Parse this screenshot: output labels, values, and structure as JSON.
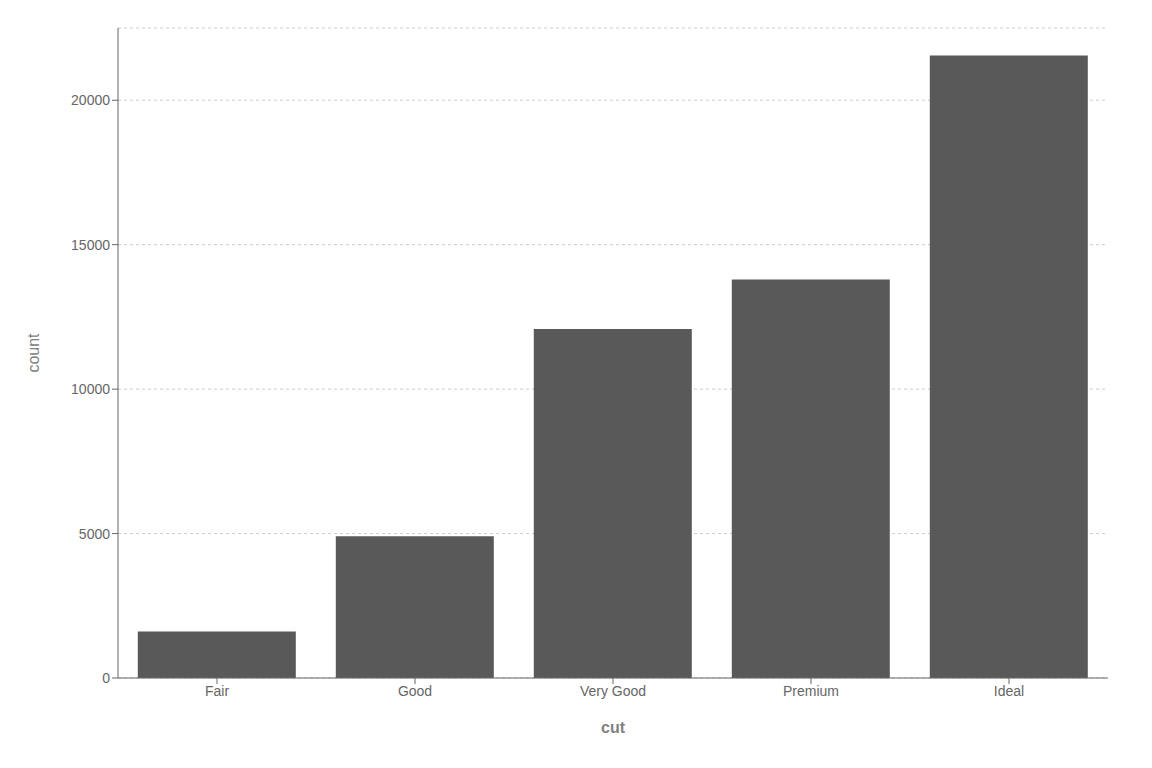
{
  "chart_data": {
    "type": "bar",
    "categories": [
      "Fair",
      "Good",
      "Very Good",
      "Premium",
      "Ideal"
    ],
    "values": [
      1610,
      4906,
      12082,
      13791,
      21551
    ],
    "color": "#595959",
    "xlabel": "cut",
    "ylabel": "count",
    "ylim": [
      0,
      22500
    ],
    "yticks": [
      0,
      5000,
      10000,
      15000,
      20000
    ],
    "grid": true
  }
}
